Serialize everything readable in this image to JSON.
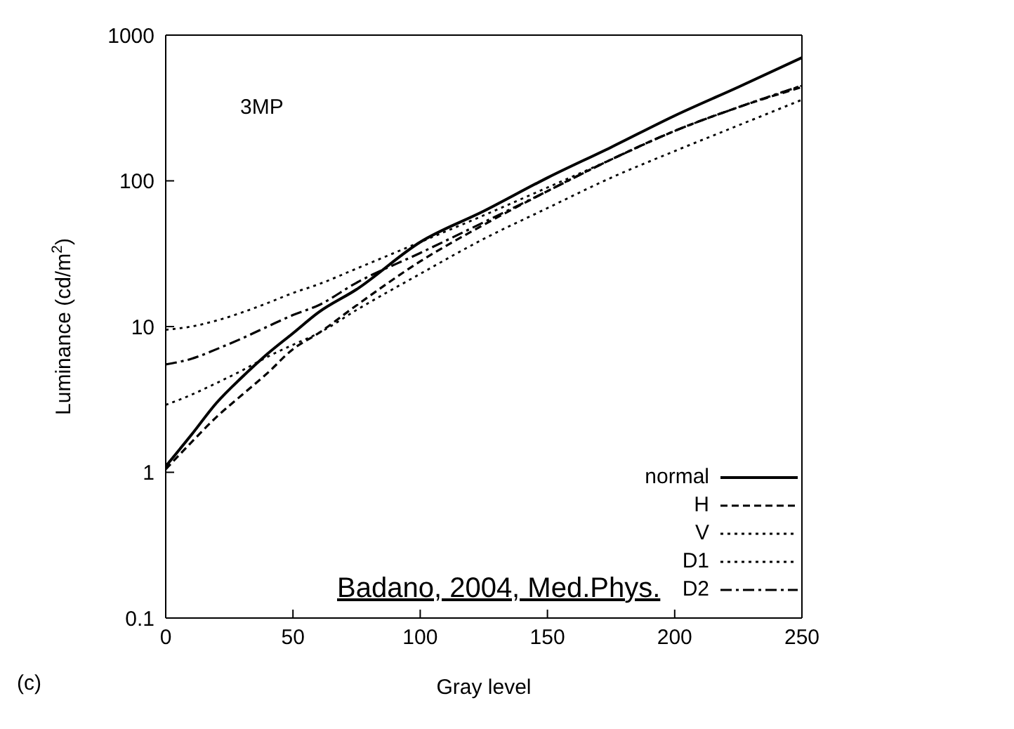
{
  "chart_data": {
    "type": "line",
    "xlabel": "Gray level",
    "ylabel": "Luminance (cd/m$^{2}$)",
    "annotations": [
      "3MP",
      "(c)",
      "Badano, 2004, Med.Phys."
    ],
    "x": [
      0,
      10,
      20,
      30,
      40,
      50,
      60,
      75,
      100,
      125,
      150,
      175,
      200,
      225,
      250
    ],
    "series": [
      {
        "name": "normal",
        "color": "#000000",
        "line_style": "solid",
        "values": [
          1.1,
          1.8,
          3.0,
          4.5,
          6.5,
          9,
          12.5,
          18,
          38,
          62,
          105,
          170,
          280,
          440,
          700
        ]
      },
      {
        "name": "H",
        "color": "#000000",
        "line_style": "dashed",
        "values": [
          1.05,
          1.6,
          2.4,
          3.4,
          4.8,
          7,
          9,
          14,
          28,
          50,
          85,
          140,
          220,
          320,
          440
        ]
      },
      {
        "name": "V",
        "color": "#000000",
        "line_style": "dotted",
        "values": [
          2.9,
          3.4,
          4.1,
          5,
          6.2,
          7.5,
          9,
          13,
          23,
          40,
          65,
          105,
          160,
          240,
          360
        ]
      },
      {
        "name": "D1",
        "color": "#000000",
        "line_style": "dotted",
        "values": [
          9.5,
          10,
          11,
          12.5,
          14.5,
          17,
          19.5,
          25,
          38,
          58,
          90,
          140,
          220,
          320,
          450
        ]
      },
      {
        "name": "D2",
        "color": "#000000",
        "line_style": "dashdot",
        "values": [
          5.5,
          6,
          7,
          8.3,
          10,
          12,
          14,
          20,
          32,
          52,
          85,
          140,
          220,
          320,
          450
        ]
      }
    ],
    "xlim": [
      0,
      250
    ],
    "xticks": [
      0,
      50,
      100,
      150,
      200,
      250
    ],
    "ylim": [
      0.1,
      1000
    ],
    "yticks": [
      0.1,
      1,
      10,
      100,
      1000
    ],
    "log": "y",
    "legend": "bottom right",
    "marker": "none"
  }
}
